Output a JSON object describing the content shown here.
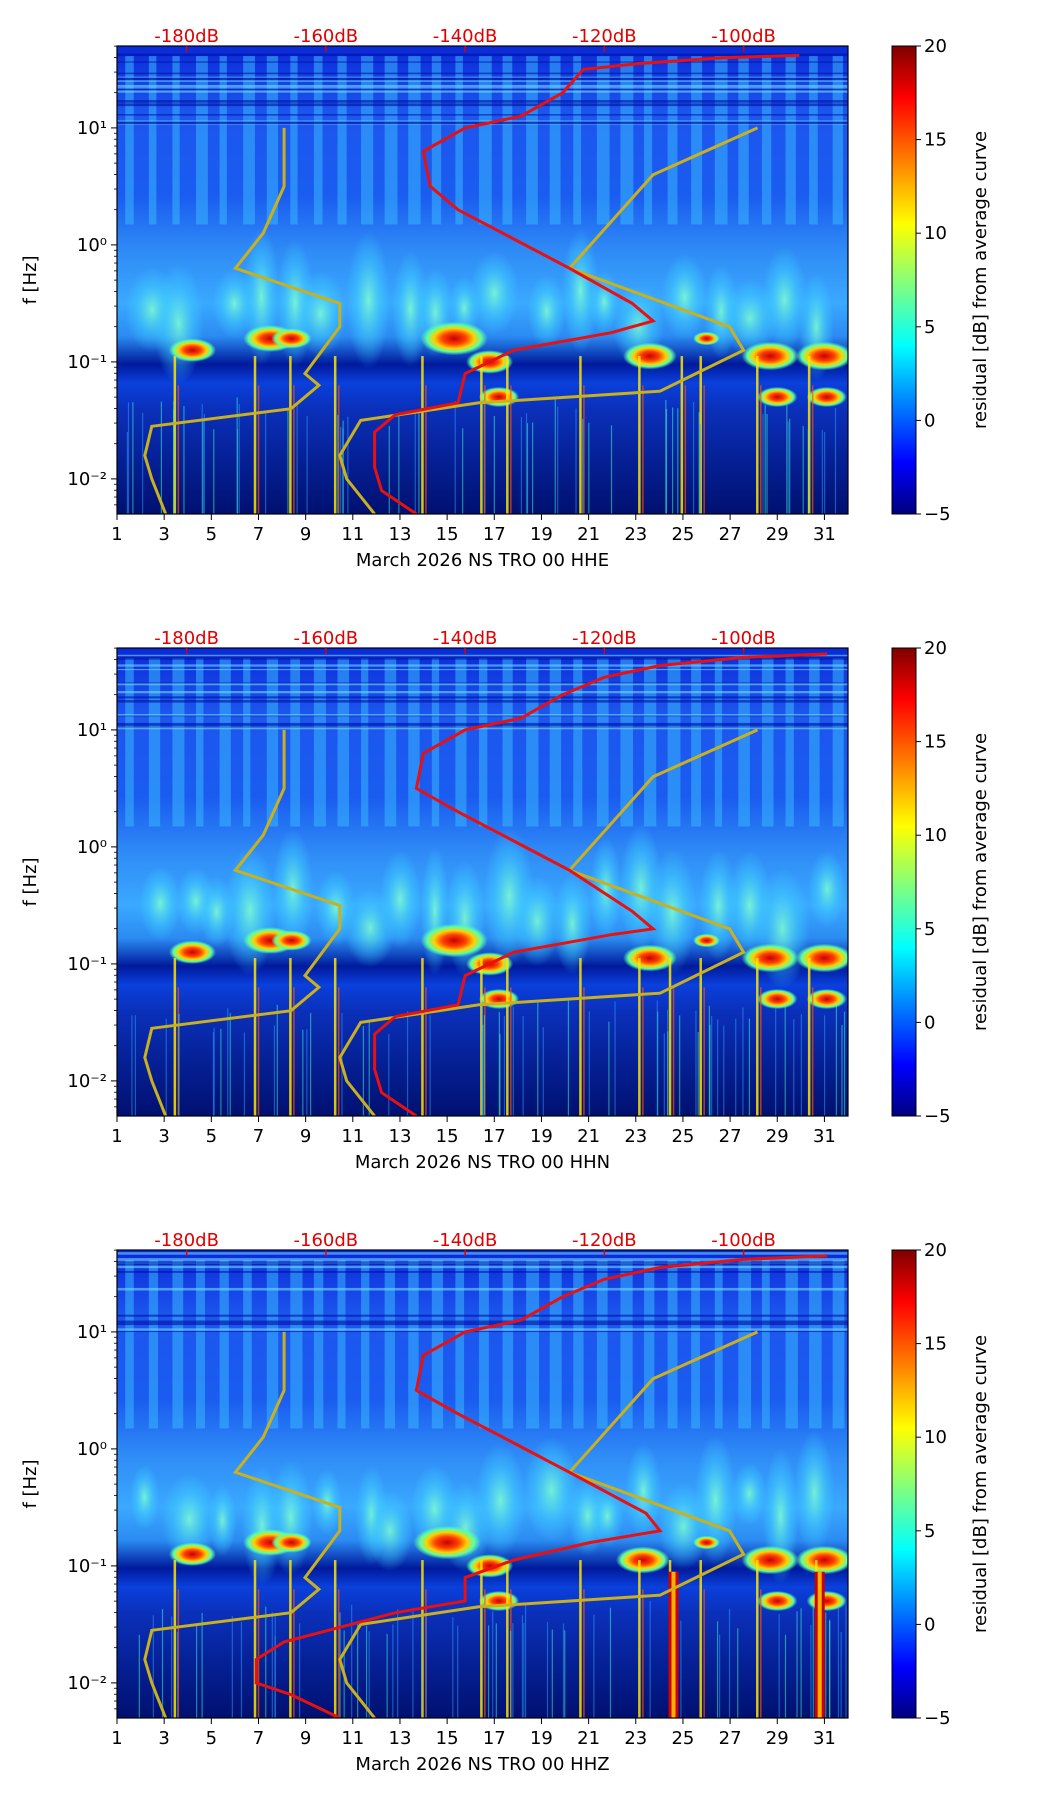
{
  "chart_data": [
    {
      "type": "heatmap",
      "subtype": "spectrogram with PSD percentile curves",
      "xlabel": "March 2026 NS TRO 00 HHE",
      "ylabel": "f [Hz]",
      "x_ticks": [
        "1",
        "3",
        "5",
        "7",
        "9",
        "11",
        "13",
        "15",
        "17",
        "19",
        "21",
        "23",
        "25",
        "27",
        "29",
        "31"
      ],
      "y_ticks": [
        "10⁻²",
        "10⁻¹",
        "10⁰",
        "10¹"
      ],
      "top_ticks": [
        "-180dB",
        "-160dB",
        "-140dB",
        "-120dB",
        "-100dB"
      ],
      "colorbar_label": "residual [dB] from average curve",
      "colorbar_ticks": [
        "20",
        "15",
        "10",
        "5",
        "0",
        "−5"
      ],
      "color_range": [
        -5,
        20
      ],
      "xlim": [
        1,
        32
      ],
      "ylim_log10": [
        -2.3,
        1.7
      ],
      "power_range_db": [
        -190,
        -85
      ],
      "red_curve": [
        [
          -147,
          -2.3
        ],
        [
          -152,
          -2.1
        ],
        [
          -153,
          -1.9
        ],
        [
          -153,
          -1.6
        ],
        [
          -150,
          -1.45
        ],
        [
          -141,
          -1.35
        ],
        [
          -140,
          -1.1
        ],
        [
          -133,
          -0.9
        ],
        [
          -119,
          -0.75
        ],
        [
          -113,
          -0.65
        ],
        [
          -116,
          -0.5
        ],
        [
          -125,
          -0.2
        ],
        [
          -133,
          0.05
        ],
        [
          -141,
          0.3
        ],
        [
          -145,
          0.5
        ],
        [
          -146,
          0.8
        ],
        [
          -140,
          1.0
        ],
        [
          -132,
          1.1
        ],
        [
          -126,
          1.3
        ],
        [
          -123,
          1.5
        ],
        [
          -115,
          1.55
        ],
        [
          -103,
          1.6
        ],
        [
          -92,
          1.62
        ]
      ],
      "yellow_curve": [
        [
          -153,
          -2.3
        ],
        [
          -157,
          -2.0
        ],
        [
          -158,
          -1.8
        ],
        [
          -155,
          -1.5
        ],
        [
          -138,
          -1.35
        ],
        [
          -112,
          -1.25
        ],
        [
          -100,
          -0.9
        ],
        [
          -102,
          -0.7
        ],
        [
          -125,
          -0.2
        ],
        [
          -113,
          0.6
        ],
        [
          -98,
          1.0
        ]
      ],
      "yellow_curve_low": [
        [
          -183,
          -2.3
        ],
        [
          -185,
          -2.0
        ],
        [
          -186,
          -1.8
        ],
        [
          -185,
          -1.55
        ],
        [
          -165,
          -1.4
        ],
        [
          -161,
          -1.2
        ],
        [
          -163,
          -1.1
        ],
        [
          -158,
          -0.7
        ],
        [
          -158,
          -0.5
        ],
        [
          -173,
          -0.2
        ],
        [
          -169,
          0.1
        ],
        [
          -166,
          0.5
        ],
        [
          -166,
          1.0
        ]
      ],
      "hot_spots": [
        [
          15.3,
          -0.8,
          1
        ],
        [
          7.5,
          -0.8,
          0.8
        ],
        [
          8.4,
          -0.8,
          0.6
        ],
        [
          4.2,
          -0.9,
          0.7
        ],
        [
          16.8,
          -1.0,
          0.7
        ],
        [
          23.6,
          -0.95,
          0.8
        ],
        [
          28.7,
          -0.95,
          0.85
        ],
        [
          31.0,
          -0.95,
          0.85
        ],
        [
          17.2,
          -1.3,
          0.6
        ],
        [
          29.0,
          -1.3,
          0.6
        ],
        [
          31.1,
          -1.3,
          0.6
        ],
        [
          26.0,
          -0.8,
          0.4
        ]
      ],
      "vertical_lines": [
        3.4,
        6.8,
        8.3,
        10.2,
        13.9,
        16.4,
        17.5,
        20.6,
        23.1,
        24.9,
        25.7,
        28.1,
        30.3
      ]
    },
    {
      "type": "heatmap",
      "subtype": "spectrogram with PSD percentile curves",
      "xlabel": "March 2026 NS TRO 00 HHN",
      "ylabel": "f [Hz]",
      "x_ticks": [
        "1",
        "3",
        "5",
        "7",
        "9",
        "11",
        "13",
        "15",
        "17",
        "19",
        "21",
        "23",
        "25",
        "27",
        "29",
        "31"
      ],
      "y_ticks": [
        "10⁻²",
        "10⁻¹",
        "10⁰",
        "10¹"
      ],
      "top_ticks": [
        "-180dB",
        "-160dB",
        "-140dB",
        "-120dB",
        "-100dB"
      ],
      "colorbar_label": "residual [dB] from average curve",
      "colorbar_ticks": [
        "20",
        "15",
        "10",
        "5",
        "0",
        "−5"
      ],
      "color_range": [
        -5,
        20
      ],
      "xlim": [
        1,
        32
      ],
      "ylim_log10": [
        -2.3,
        1.7
      ],
      "power_range_db": [
        -190,
        -85
      ],
      "red_curve": [
        [
          -147,
          -2.3
        ],
        [
          -152,
          -2.1
        ],
        [
          -153,
          -1.9
        ],
        [
          -153,
          -1.6
        ],
        [
          -150,
          -1.45
        ],
        [
          -141,
          -1.35
        ],
        [
          -140,
          -1.1
        ],
        [
          -133,
          -0.9
        ],
        [
          -119,
          -0.75
        ],
        [
          -113,
          -0.7
        ],
        [
          -116,
          -0.55
        ],
        [
          -125,
          -0.2
        ],
        [
          -133,
          0.05
        ],
        [
          -141,
          0.3
        ],
        [
          -147,
          0.5
        ],
        [
          -146,
          0.8
        ],
        [
          -140,
          1.0
        ],
        [
          -132,
          1.1
        ],
        [
          -126,
          1.3
        ],
        [
          -120,
          1.45
        ],
        [
          -112,
          1.55
        ],
        [
          -100,
          1.62
        ],
        [
          -88,
          1.65
        ]
      ],
      "yellow_curve": [
        [
          -153,
          -2.3
        ],
        [
          -157,
          -2.0
        ],
        [
          -158,
          -1.8
        ],
        [
          -155,
          -1.5
        ],
        [
          -138,
          -1.35
        ],
        [
          -112,
          -1.25
        ],
        [
          -100,
          -0.9
        ],
        [
          -102,
          -0.7
        ],
        [
          -125,
          -0.2
        ],
        [
          -113,
          0.6
        ],
        [
          -98,
          1.0
        ]
      ],
      "yellow_curve_low": [
        [
          -183,
          -2.3
        ],
        [
          -185,
          -2.0
        ],
        [
          -186,
          -1.8
        ],
        [
          -185,
          -1.55
        ],
        [
          -165,
          -1.4
        ],
        [
          -161,
          -1.2
        ],
        [
          -163,
          -1.1
        ],
        [
          -158,
          -0.7
        ],
        [
          -158,
          -0.5
        ],
        [
          -173,
          -0.2
        ],
        [
          -169,
          0.1
        ],
        [
          -166,
          0.5
        ],
        [
          -166,
          1.0
        ]
      ],
      "hot_spots": [
        [
          15.3,
          -0.8,
          1
        ],
        [
          7.5,
          -0.8,
          0.8
        ],
        [
          8.4,
          -0.8,
          0.6
        ],
        [
          4.2,
          -0.9,
          0.7
        ],
        [
          16.8,
          -1.0,
          0.7
        ],
        [
          23.6,
          -0.95,
          0.8
        ],
        [
          28.7,
          -0.95,
          0.85
        ],
        [
          31.0,
          -0.95,
          0.85
        ],
        [
          17.2,
          -1.3,
          0.6
        ],
        [
          29.0,
          -1.3,
          0.6
        ],
        [
          31.1,
          -1.3,
          0.6
        ],
        [
          26.0,
          -0.8,
          0.4
        ]
      ],
      "vertical_lines": [
        3.4,
        6.8,
        8.3,
        10.2,
        13.9,
        16.4,
        17.5,
        20.6,
        23.1,
        24.4,
        25.7,
        28.1,
        30.3
      ]
    },
    {
      "type": "heatmap",
      "subtype": "spectrogram with PSD percentile curves",
      "xlabel": "March 2026 NS TRO 00 HHZ",
      "ylabel": "f [Hz]",
      "x_ticks": [
        "1",
        "3",
        "5",
        "7",
        "9",
        "11",
        "13",
        "15",
        "17",
        "19",
        "21",
        "23",
        "25",
        "27",
        "29",
        "31"
      ],
      "y_ticks": [
        "10⁻²",
        "10⁻¹",
        "10⁰",
        "10¹"
      ],
      "top_ticks": [
        "-180dB",
        "-160dB",
        "-140dB",
        "-120dB",
        "-100dB"
      ],
      "colorbar_label": "residual [dB] from average curve",
      "colorbar_ticks": [
        "20",
        "15",
        "10",
        "5",
        "0",
        "−5"
      ],
      "color_range": [
        -5,
        20
      ],
      "xlim": [
        1,
        32
      ],
      "ylim_log10": [
        -2.3,
        1.7
      ],
      "power_range_db": [
        -190,
        -85
      ],
      "red_curve": [
        [
          -158,
          -2.3
        ],
        [
          -165,
          -2.1
        ],
        [
          -170,
          -2.0
        ],
        [
          -170,
          -1.8
        ],
        [
          -166,
          -1.65
        ],
        [
          -150,
          -1.4
        ],
        [
          -140,
          -1.3
        ],
        [
          -140,
          -1.1
        ],
        [
          -133,
          -0.95
        ],
        [
          -122,
          -0.8
        ],
        [
          -112,
          -0.7
        ],
        [
          -114,
          -0.55
        ],
        [
          -125,
          -0.2
        ],
        [
          -133,
          0.05
        ],
        [
          -141,
          0.3
        ],
        [
          -147,
          0.5
        ],
        [
          -146,
          0.8
        ],
        [
          -140,
          1.0
        ],
        [
          -132,
          1.1
        ],
        [
          -126,
          1.3
        ],
        [
          -120,
          1.45
        ],
        [
          -112,
          1.55
        ],
        [
          -100,
          1.62
        ],
        [
          -88,
          1.65
        ]
      ],
      "yellow_curve": [
        [
          -153,
          -2.3
        ],
        [
          -157,
          -2.0
        ],
        [
          -158,
          -1.8
        ],
        [
          -155,
          -1.5
        ],
        [
          -138,
          -1.35
        ],
        [
          -112,
          -1.25
        ],
        [
          -100,
          -0.9
        ],
        [
          -102,
          -0.7
        ],
        [
          -125,
          -0.2
        ],
        [
          -113,
          0.6
        ],
        [
          -98,
          1.0
        ]
      ],
      "yellow_curve_low": [
        [
          -183,
          -2.3
        ],
        [
          -185,
          -2.0
        ],
        [
          -186,
          -1.8
        ],
        [
          -185,
          -1.55
        ],
        [
          -165,
          -1.4
        ],
        [
          -161,
          -1.2
        ],
        [
          -163,
          -1.1
        ],
        [
          -158,
          -0.7
        ],
        [
          -158,
          -0.5
        ],
        [
          -173,
          -0.2
        ],
        [
          -169,
          0.1
        ],
        [
          -166,
          0.5
        ],
        [
          -166,
          1.0
        ]
      ],
      "hot_spots": [
        [
          15.0,
          -0.8,
          1
        ],
        [
          7.5,
          -0.8,
          0.8
        ],
        [
          8.4,
          -0.8,
          0.6
        ],
        [
          4.2,
          -0.9,
          0.7
        ],
        [
          16.8,
          -1.0,
          0.7
        ],
        [
          23.3,
          -0.95,
          0.8
        ],
        [
          28.7,
          -0.95,
          0.85
        ],
        [
          31.0,
          -0.95,
          0.85
        ],
        [
          17.2,
          -1.3,
          0.6
        ],
        [
          29.0,
          -1.3,
          0.6
        ],
        [
          31.1,
          -1.3,
          0.6
        ],
        [
          26.0,
          -0.8,
          0.4
        ]
      ],
      "vertical_lines": [
        3.4,
        6.8,
        8.3,
        10.2,
        13.9,
        16.4,
        17.5,
        20.6,
        23.1,
        24.4,
        25.7,
        28.1,
        30.6
      ],
      "strong_vertical_bands": [
        24.6,
        30.8
      ]
    }
  ]
}
